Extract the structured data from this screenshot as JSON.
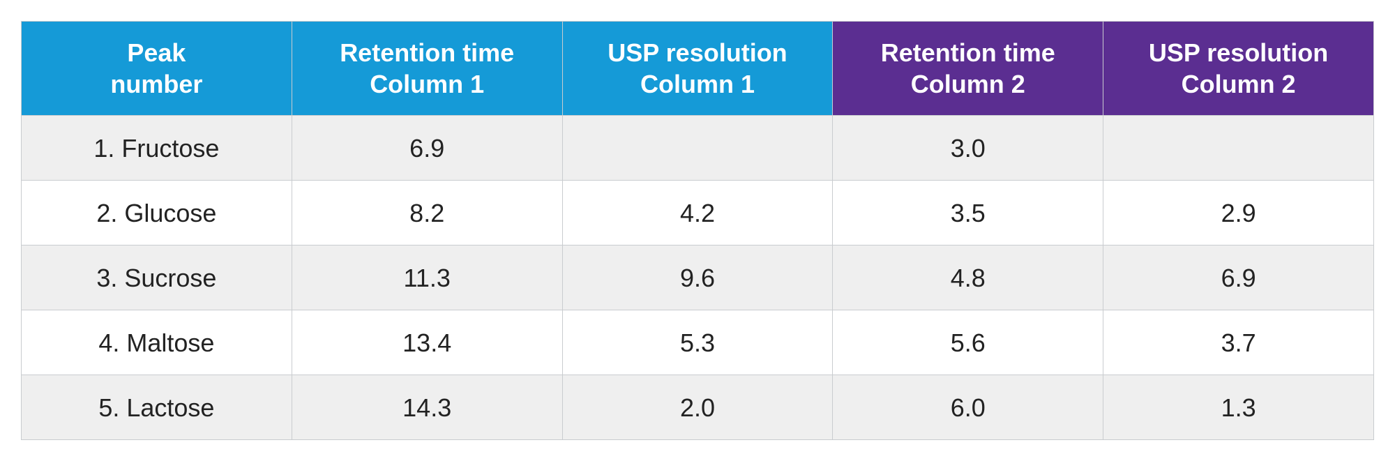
{
  "table": {
    "type": "table",
    "header_colors": {
      "blue": "#159ad7",
      "purple": "#5b2e91"
    },
    "row_colors": {
      "odd": "#efefef",
      "even": "#ffffff"
    },
    "border_color": "#c9cccf",
    "font_family": "Arial",
    "header_fontsize_pt": 28,
    "body_fontsize_pt": 28,
    "columns": [
      {
        "label_line1": "Peak",
        "label_line2": "number",
        "color": "blue"
      },
      {
        "label_line1": "Retention time",
        "label_line2": "Column 1",
        "color": "blue"
      },
      {
        "label_line1": "USP resolution",
        "label_line2": "Column 1",
        "color": "blue"
      },
      {
        "label_line1": "Retention time",
        "label_line2": "Column 2",
        "color": "purple"
      },
      {
        "label_line1": "USP resolution",
        "label_line2": "Column 2",
        "color": "purple"
      }
    ],
    "rows": [
      {
        "peak": "1. Fructose",
        "rt1": "6.9",
        "res1": "",
        "rt2": "3.0",
        "res2": ""
      },
      {
        "peak": "2. Glucose",
        "rt1": "8.2",
        "res1": "4.2",
        "rt2": "3.5",
        "res2": "2.9"
      },
      {
        "peak": "3. Sucrose",
        "rt1": "11.3",
        "res1": "9.6",
        "rt2": "4.8",
        "res2": "6.9"
      },
      {
        "peak": "4. Maltose",
        "rt1": "13.4",
        "res1": "5.3",
        "rt2": "5.6",
        "res2": "3.7"
      },
      {
        "peak": "5. Lactose",
        "rt1": "14.3",
        "res1": "2.0",
        "rt2": "6.0",
        "res2": "1.3"
      }
    ]
  }
}
